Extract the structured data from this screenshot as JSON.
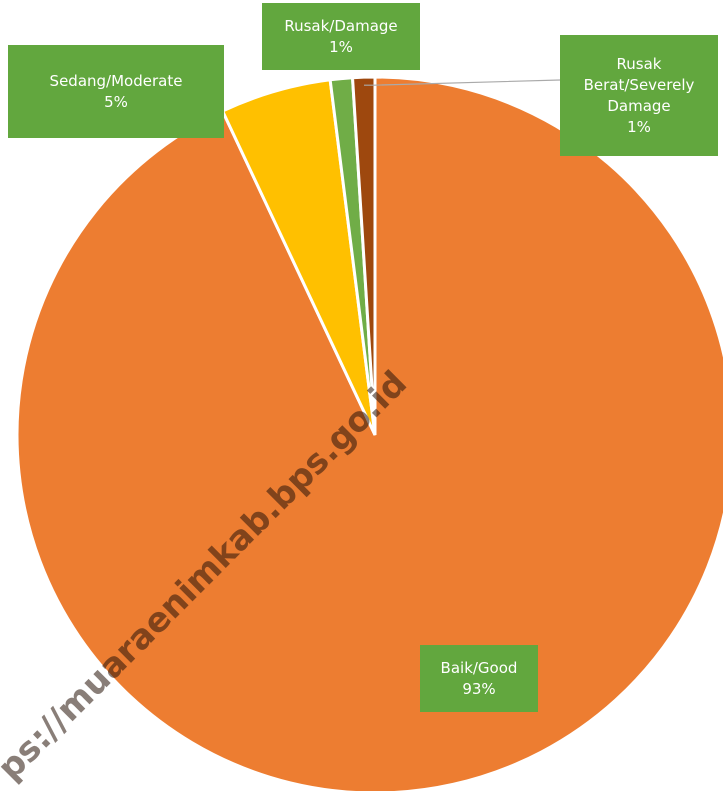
{
  "chart_data": {
    "type": "pie",
    "categories": [
      "Baik/Good",
      "Sedang/Moderate",
      "Rusak/Damage",
      "Rusak Berat/Severely Damage"
    ],
    "values": [
      93,
      5,
      1,
      1
    ],
    "value_labels": [
      "93%",
      "5%",
      "1%",
      "1%"
    ],
    "colors": [
      "#ed7d31",
      "#ffc000",
      "#70ad47",
      "#9e480e"
    ],
    "watermark": "ps://muaraenimkab.bps.go.id"
  }
}
